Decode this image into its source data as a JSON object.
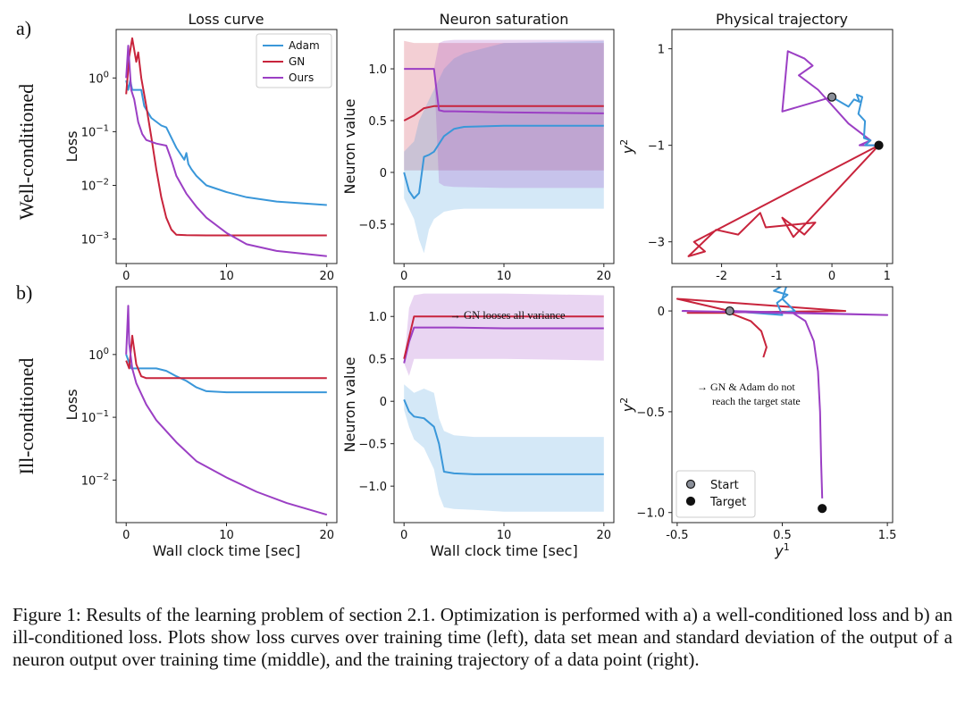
{
  "figure": {
    "row_labels": [
      "a)",
      "b)"
    ],
    "row_titles": [
      "Well-conditioned",
      "Ill-conditioned"
    ],
    "col_titles": [
      "Loss curve",
      "Neuron saturation",
      "Physical trajectory"
    ],
    "caption": "Figure 1:  Results of the learning problem of section 2.1. Optimization is performed with a) a well-conditioned loss and b) an ill-conditioned loss. Plots show loss curves over training time (left), data set mean and standard deviation of the output of a neuron output over training time (middle), and the training trajectory of a data point (right).",
    "colors": {
      "Adam": "#3a97d9",
      "GN": "#c8243c",
      "Ours": "#9b3fc4"
    }
  },
  "chart_data": [
    {
      "id": "loss-a",
      "type": "line",
      "yscale": "log",
      "ylabel": "Loss",
      "xlabel": "",
      "xlim": [
        -1,
        21
      ],
      "ylim": [
        0.00035,
        8
      ],
      "xticks": [
        0,
        10,
        20
      ],
      "yticks": [
        1,
        0.1,
        0.01,
        0.001
      ],
      "ytick_labels": [
        "10^0",
        "10^-1",
        "10^-2",
        "10^-3"
      ],
      "legend": [
        "Adam",
        "GN",
        "Ours"
      ],
      "series": [
        {
          "name": "Adam",
          "x": [
            0,
            0.2,
            0.4,
            0.6,
            1,
            1.5,
            1.8,
            2.5,
            3.5,
            4,
            5,
            5.8,
            6,
            6.2,
            6.5,
            7,
            8,
            10,
            12,
            15,
            20
          ],
          "y": [
            0.9,
            0.6,
            0.9,
            0.6,
            0.6,
            0.6,
            0.3,
            0.18,
            0.13,
            0.12,
            0.05,
            0.03,
            0.04,
            0.025,
            0.02,
            0.015,
            0.01,
            0.0075,
            0.006,
            0.005,
            0.0043
          ]
        },
        {
          "name": "GN",
          "x": [
            0,
            0.3,
            0.6,
            1.0,
            1.2,
            1.5,
            2.0,
            2.5,
            3.0,
            3.5,
            4.0,
            4.5,
            5,
            6,
            8,
            10,
            15,
            20
          ],
          "y": [
            0.5,
            2.5,
            5.5,
            2.0,
            3.0,
            1.0,
            0.3,
            0.08,
            0.02,
            0.006,
            0.0025,
            0.0015,
            0.0012,
            0.00118,
            0.00117,
            0.00117,
            0.00117,
            0.00117
          ]
        },
        {
          "name": "Ours",
          "x": [
            0,
            0.2,
            0.5,
            0.8,
            1.2,
            1.6,
            2,
            3,
            4,
            4.5,
            5,
            6,
            7,
            8,
            10,
            12,
            15,
            20
          ],
          "y": [
            1.0,
            4.0,
            0.6,
            0.4,
            0.15,
            0.09,
            0.07,
            0.06,
            0.055,
            0.03,
            0.015,
            0.007,
            0.004,
            0.0025,
            0.0013,
            0.0008,
            0.0006,
            0.00048
          ]
        }
      ]
    },
    {
      "id": "neuron-a",
      "type": "area",
      "ylabel": "Neuron value",
      "xlabel": "",
      "xlim": [
        -1,
        21
      ],
      "ylim": [
        -0.88,
        1.38
      ],
      "xticks": [
        0,
        10,
        20
      ],
      "yticks": [
        1.0,
        0.5,
        0,
        -0.5
      ],
      "ytick_labels": [
        "1.0",
        "0.5",
        "0",
        "-0.5"
      ],
      "series": [
        {
          "name": "GN",
          "x": [
            0,
            1,
            2,
            3,
            4,
            5,
            10,
            20
          ],
          "y": [
            0.5,
            0.55,
            0.62,
            0.64,
            0.64,
            0.64,
            0.64,
            0.64
          ],
          "lower": [
            0.02,
            0.02,
            0.02,
            0.02,
            0.02,
            0.02,
            0.02,
            0.02
          ],
          "upper": [
            1.27,
            1.25,
            1.25,
            1.25,
            1.25,
            1.25,
            1.25,
            1.25
          ]
        },
        {
          "name": "Adam",
          "x": [
            0,
            0.5,
            1,
            1.5,
            2,
            2.5,
            3,
            4,
            5,
            6,
            10,
            20
          ],
          "y": [
            0.0,
            -0.18,
            -0.25,
            -0.2,
            0.15,
            0.17,
            0.2,
            0.35,
            0.42,
            0.44,
            0.45,
            0.45
          ],
          "lower": [
            -0.25,
            -0.35,
            -0.45,
            -0.65,
            -0.78,
            -0.55,
            -0.45,
            -0.38,
            -0.36,
            -0.35,
            -0.35,
            -0.35
          ],
          "upper": [
            0.2,
            0.25,
            0.3,
            0.5,
            0.6,
            0.7,
            0.8,
            1.0,
            1.1,
            1.15,
            1.25,
            1.27
          ]
        },
        {
          "name": "Ours",
          "x": [
            0,
            2,
            3,
            3.5,
            4,
            5,
            10,
            20
          ],
          "y": [
            1.0,
            1.0,
            1.0,
            0.6,
            0.59,
            0.59,
            0.58,
            0.57
          ],
          "lower": [
            1.0,
            1.0,
            1.0,
            -0.1,
            -0.13,
            -0.14,
            -0.15,
            -0.15
          ],
          "upper": [
            1.0,
            1.0,
            1.0,
            1.25,
            1.27,
            1.28,
            1.28,
            1.28
          ]
        }
      ]
    },
    {
      "id": "traj-a",
      "type": "line",
      "ylabel": "y^2",
      "xlabel": "",
      "xlim": [
        -2.9,
        1.1
      ],
      "ylim": [
        -3.45,
        1.4
      ],
      "xticks": [
        -2,
        -1,
        0,
        1
      ],
      "yticks": [
        1,
        -1,
        -3
      ],
      "xtick_labels": [
        "-2",
        "-1",
        "0",
        "1"
      ],
      "ytick_labels": [
        "1",
        "-1",
        "-3"
      ],
      "markers": [
        {
          "name": "Start",
          "x": 0,
          "y": 0
        },
        {
          "name": "Target",
          "x": 0.85,
          "y": -1.0
        }
      ],
      "series": [
        {
          "name": "GN",
          "x": [
            0.85,
            -2.5,
            -2.3,
            -2.6,
            -2.1,
            -1.7,
            -1.3,
            -1.2,
            -0.3,
            -0.5,
            -0.9,
            -0.7,
            0.85
          ],
          "y": [
            -1.0,
            -3.0,
            -3.2,
            -3.3,
            -2.75,
            -2.85,
            -2.4,
            -2.7,
            -2.6,
            -2.85,
            -2.5,
            -2.9,
            -1.0
          ]
        },
        {
          "name": "Ours",
          "x": [
            0.0,
            -0.9,
            -0.8,
            -0.5,
            -0.35,
            -0.6,
            -0.25,
            0.3,
            0.7,
            0.5,
            0.85
          ],
          "y": [
            0.0,
            -0.3,
            0.95,
            0.8,
            0.65,
            0.45,
            0.15,
            -0.55,
            -0.9,
            -1.0,
            -1.0
          ]
        },
        {
          "name": "Adam",
          "x": [
            0.0,
            0.3,
            0.4,
            0.5,
            0.45,
            0.55,
            0.48,
            0.6,
            0.58,
            0.7,
            0.6,
            0.85
          ],
          "y": [
            0.0,
            -0.2,
            -0.05,
            -0.1,
            0.05,
            0.0,
            -0.35,
            -0.5,
            -0.85,
            -0.9,
            -1.0,
            -1.0
          ]
        }
      ]
    },
    {
      "id": "loss-b",
      "type": "line",
      "yscale": "log",
      "ylabel": "Loss",
      "xlabel": "Wall clock time [sec]",
      "xlim": [
        -1,
        21
      ],
      "ylim": [
        0.0021,
        12
      ],
      "xticks": [
        0,
        10,
        20
      ],
      "yticks": [
        1,
        0.1,
        0.01
      ],
      "ytick_labels": [
        "10^0",
        "10^-1",
        "10^-2"
      ],
      "series": [
        {
          "name": "Adam",
          "x": [
            0,
            0.5,
            1,
            2,
            3,
            4,
            5,
            6,
            7,
            8,
            10,
            20
          ],
          "y": [
            1.0,
            0.6,
            0.6,
            0.6,
            0.6,
            0.55,
            0.45,
            0.38,
            0.3,
            0.26,
            0.25,
            0.25
          ]
        },
        {
          "name": "GN",
          "x": [
            0,
            0.3,
            0.6,
            0.8,
            1.0,
            1.5,
            2,
            3,
            5,
            10,
            20
          ],
          "y": [
            0.8,
            0.6,
            2.0,
            1.2,
            0.7,
            0.45,
            0.42,
            0.42,
            0.42,
            0.42,
            0.42
          ]
        },
        {
          "name": "Ours",
          "x": [
            0,
            0.2,
            0.3,
            0.6,
            1,
            2,
            3,
            5,
            7,
            10,
            13,
            16,
            20
          ],
          "y": [
            1.0,
            6.0,
            1.5,
            0.6,
            0.35,
            0.16,
            0.09,
            0.04,
            0.02,
            0.011,
            0.0065,
            0.0043,
            0.0028
          ]
        }
      ]
    },
    {
      "id": "neuron-b",
      "type": "area",
      "ylabel": "Neuron value",
      "xlabel": "Wall clock time [sec]",
      "xlim": [
        -1,
        21
      ],
      "ylim": [
        -1.43,
        1.35
      ],
      "xticks": [
        0,
        10,
        20
      ],
      "yticks": [
        1.0,
        0.5,
        0,
        -0.5,
        -1.0
      ],
      "ytick_labels": [
        "1.0",
        "0.5",
        "0",
        "-0.5",
        "-1.0"
      ],
      "annotation": "→ GN looses all variance",
      "series": [
        {
          "name": "Ours",
          "x": [
            0,
            0.5,
            1,
            2,
            5,
            10,
            20
          ],
          "y": [
            0.45,
            0.7,
            0.87,
            0.87,
            0.87,
            0.86,
            0.86
          ],
          "lower": [
            0.45,
            0.3,
            0.5,
            0.5,
            0.5,
            0.5,
            0.48
          ],
          "upper": [
            0.45,
            1.1,
            1.25,
            1.27,
            1.27,
            1.27,
            1.25
          ]
        },
        {
          "name": "Adam",
          "x": [
            0,
            0.5,
            1,
            2,
            3,
            3.5,
            4,
            5,
            7,
            10,
            20
          ],
          "y": [
            0.02,
            -0.12,
            -0.18,
            -0.2,
            -0.3,
            -0.5,
            -0.83,
            -0.85,
            -0.86,
            -0.86,
            -0.86
          ],
          "lower": [
            -0.1,
            -0.3,
            -0.45,
            -0.55,
            -0.8,
            -1.1,
            -1.25,
            -1.27,
            -1.28,
            -1.3,
            -1.3
          ],
          "upper": [
            0.2,
            0.15,
            0.1,
            0.15,
            0.1,
            -0.2,
            -0.35,
            -0.4,
            -0.42,
            -0.42,
            -0.42
          ]
        },
        {
          "name": "GN",
          "x": [
            0,
            1,
            2,
            5,
            10,
            20
          ],
          "y": [
            0.5,
            1.0,
            1.0,
            1.0,
            1.0,
            1.0
          ],
          "lower": [
            0.5,
            1.0,
            1.0,
            1.0,
            1.0,
            1.0
          ],
          "upper": [
            0.5,
            1.0,
            1.0,
            1.0,
            1.0,
            1.0
          ]
        }
      ]
    },
    {
      "id": "traj-b",
      "type": "line",
      "ylabel": "y^2",
      "xlabel": "y^1",
      "xlim": [
        -0.55,
        1.55
      ],
      "ylim": [
        -1.05,
        0.12
      ],
      "xticks": [
        -0.5,
        0.5,
        1.5
      ],
      "yticks": [
        0,
        -0.5,
        -1.0
      ],
      "xtick_labels": [
        "-0.5",
        "0.5",
        "1.5"
      ],
      "ytick_labels": [
        "0",
        "-0.5",
        "-1.0"
      ],
      "annotation": [
        "→ GN & Adam do not",
        "reach the target state"
      ],
      "legend": [
        "Start",
        "Target"
      ],
      "markers": [
        {
          "name": "Start",
          "x": 0.0,
          "y": 0.0
        },
        {
          "name": "Target",
          "x": 0.88,
          "y": -0.98
        }
      ],
      "series": [
        {
          "name": "GN",
          "x": [
            0.0,
            -0.5,
            1.1,
            -0.4,
            0.0,
            0.2,
            0.3,
            0.35,
            0.32
          ],
          "y": [
            0.0,
            0.06,
            0.0,
            -0.01,
            -0.01,
            -0.05,
            -0.1,
            -0.18,
            -0.23
          ]
        },
        {
          "name": "Adam",
          "x": [
            0.0,
            0.5,
            0.45,
            0.55,
            0.42,
            0.55,
            0.5,
            0.62,
            0.45,
            0.0
          ],
          "y": [
            0.0,
            -0.02,
            0.04,
            0.08,
            0.1,
            0.14,
            0.06,
            0.0,
            -0.01,
            0.0
          ]
        },
        {
          "name": "Ours",
          "x": [
            0.0,
            1.5,
            -0.45,
            0.6,
            0.72,
            0.8,
            0.84,
            0.86,
            0.87,
            0.88
          ],
          "y": [
            0.0,
            -0.02,
            0.0,
            -0.01,
            -0.05,
            -0.15,
            -0.3,
            -0.5,
            -0.75,
            -0.93
          ]
        }
      ]
    }
  ]
}
